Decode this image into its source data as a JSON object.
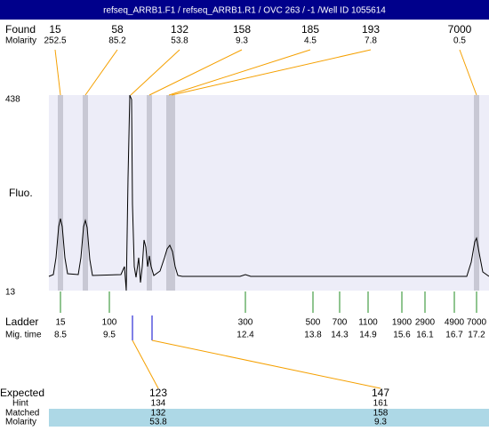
{
  "header": {
    "title": "refseq_ARRB1.F1 / refseq_ARRB1.R1 / OVC 263 / -1 /Well ID 1055614"
  },
  "found": {
    "label": "Found",
    "molarity_label": "Molarity",
    "peaks": [
      {
        "size": 15,
        "molarity": 252.5
      },
      {
        "size": 58,
        "molarity": 85.2
      },
      {
        "size": 132,
        "molarity": 53.8
      },
      {
        "size": 158,
        "molarity": 9.3
      },
      {
        "size": 185,
        "molarity": 4.5
      },
      {
        "size": 193,
        "molarity": 7.8
      },
      {
        "size": 7000,
        "molarity": 0.5
      }
    ]
  },
  "axis": {
    "label": "Fluo.",
    "top": 438,
    "bottom": 13
  },
  "ladder": {
    "label": "Ladder",
    "time_label": "Mig. time",
    "entries": [
      {
        "size": 15,
        "time": 8.5
      },
      {
        "size": 100,
        "time": 9.5
      },
      {
        "size": 300,
        "time": 12.4
      },
      {
        "size": 500,
        "time": 13.8
      },
      {
        "size": 700,
        "time": 14.3
      },
      {
        "size": 1100,
        "time": 14.9
      },
      {
        "size": 1900,
        "time": 15.6
      },
      {
        "size": 2900,
        "time": 16.1
      },
      {
        "size": 4900,
        "time": 16.7
      },
      {
        "size": 7000,
        "time": 17.2
      }
    ]
  },
  "expected": {
    "label": "Expected",
    "hint_label": "Hint",
    "matched_label": "Matched",
    "molarity_label": "Molarity",
    "columns": [
      {
        "expected": 123,
        "hint": 134,
        "matched": 132,
        "molarity": 53.8
      },
      {
        "expected": 147,
        "hint": 161,
        "matched": 158,
        "molarity": 9.3
      }
    ]
  }
}
